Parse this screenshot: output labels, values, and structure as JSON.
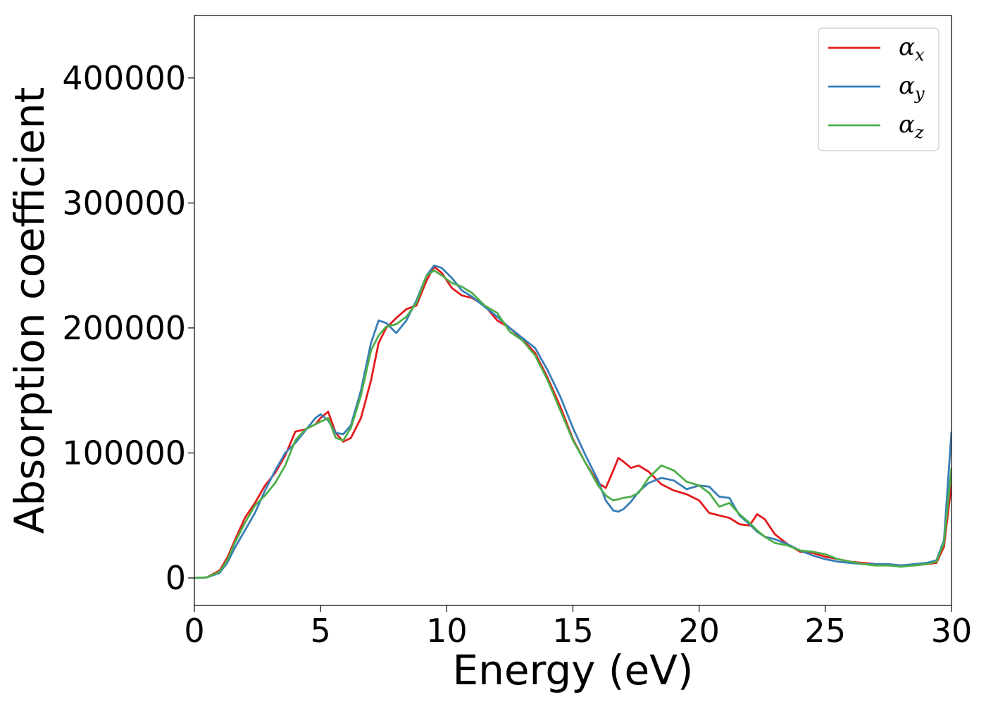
{
  "chart_data": {
    "type": "line",
    "xlabel": "Energy (eV)",
    "ylabel": "Absorption coefficient",
    "xlim": [
      0,
      30
    ],
    "ylim": [
      -22000,
      450000
    ],
    "xticks": [
      0,
      5,
      10,
      15,
      20,
      25,
      30
    ],
    "xtick_labels": [
      "0",
      "5",
      "10",
      "15",
      "20",
      "25",
      "30"
    ],
    "yticks": [
      0,
      100000,
      200000,
      300000,
      400000
    ],
    "ytick_labels": [
      "0",
      "100000",
      "200000",
      "300000",
      "400000"
    ],
    "grid": false,
    "legend_position": "top-right",
    "series": [
      {
        "name": "α",
        "subscript": "x",
        "color": "#e41a1c",
        "x": [
          0,
          0.5,
          1.0,
          1.3,
          1.6,
          2.0,
          2.4,
          2.8,
          3.2,
          3.6,
          4.0,
          4.4,
          4.8,
          5.0,
          5.3,
          5.6,
          5.9,
          6.2,
          6.6,
          7.0,
          7.3,
          7.6,
          8.0,
          8.4,
          8.8,
          9.2,
          9.5,
          9.8,
          10.2,
          10.6,
          11.0,
          11.5,
          12.0,
          12.5,
          13.0,
          13.5,
          14.0,
          14.5,
          15.0,
          15.5,
          16.0,
          16.3,
          16.6,
          16.8,
          17.0,
          17.3,
          17.6,
          18.0,
          18.5,
          19.0,
          19.5,
          20.0,
          20.4,
          20.8,
          21.2,
          21.6,
          22.0,
          22.3,
          22.6,
          23.0,
          23.5,
          24.0,
          24.5,
          25.0,
          25.5,
          26.0,
          26.5,
          27.0,
          27.5,
          28.0,
          28.5,
          29.0,
          29.4,
          29.7,
          30.0
        ],
        "y": [
          0,
          500,
          6000,
          16000,
          30000,
          48000,
          60000,
          74000,
          84000,
          98000,
          117000,
          119000,
          123000,
          128000,
          133000,
          116000,
          109000,
          112000,
          128000,
          158000,
          188000,
          200000,
          208000,
          215000,
          218000,
          238000,
          249000,
          244000,
          232000,
          226000,
          224000,
          218000,
          206000,
          200000,
          191000,
          180000,
          160000,
          137000,
          111000,
          92000,
          76000,
          72000,
          86000,
          96000,
          93000,
          88000,
          90000,
          85000,
          75000,
          70000,
          67000,
          62000,
          52000,
          50000,
          48000,
          43000,
          42000,
          51000,
          47000,
          35000,
          27000,
          21000,
          20000,
          17000,
          15000,
          13000,
          12000,
          11000,
          11000,
          10000,
          10000,
          11000,
          12000,
          25000,
          75000
        ]
      },
      {
        "name": "α",
        "subscript": "y",
        "color": "#377eb8",
        "x": [
          0,
          0.5,
          1.0,
          1.3,
          1.6,
          2.0,
          2.4,
          2.8,
          3.2,
          3.6,
          4.0,
          4.4,
          4.8,
          5.0,
          5.3,
          5.6,
          5.9,
          6.2,
          6.6,
          7.0,
          7.3,
          7.6,
          8.0,
          8.4,
          8.8,
          9.2,
          9.5,
          9.8,
          10.2,
          10.6,
          11.0,
          11.5,
          12.0,
          12.5,
          13.0,
          13.5,
          14.0,
          14.5,
          15.0,
          15.5,
          16.0,
          16.3,
          16.6,
          16.8,
          17.0,
          17.3,
          17.6,
          18.0,
          18.5,
          19.0,
          19.5,
          20.0,
          20.4,
          20.8,
          21.2,
          21.6,
          22.0,
          22.3,
          22.6,
          23.0,
          23.5,
          24.0,
          24.5,
          25.0,
          25.5,
          26.0,
          26.5,
          27.0,
          27.5,
          28.0,
          28.5,
          29.0,
          29.4,
          29.7,
          30.0
        ],
        "y": [
          0,
          400,
          4000,
          12000,
          24000,
          38000,
          52000,
          70000,
          86000,
          100000,
          108000,
          118000,
          128000,
          131000,
          126000,
          116000,
          115000,
          122000,
          150000,
          188000,
          206000,
          204000,
          196000,
          206000,
          222000,
          242000,
          250000,
          248000,
          240000,
          230000,
          225000,
          217000,
          209000,
          200000,
          192000,
          184000,
          166000,
          145000,
          120000,
          98000,
          78000,
          62000,
          54000,
          53000,
          55000,
          61000,
          69000,
          76000,
          80000,
          78000,
          71000,
          74000,
          73000,
          65000,
          64000,
          50000,
          43000,
          37000,
          33000,
          31000,
          27000,
          22000,
          18000,
          15000,
          13000,
          12000,
          11000,
          11000,
          11000,
          10000,
          11000,
          12000,
          14000,
          30000,
          117000
        ]
      },
      {
        "name": "α",
        "subscript": "z",
        "color": "#4daf4a",
        "x": [
          0,
          0.5,
          1.0,
          1.3,
          1.6,
          2.0,
          2.4,
          2.8,
          3.2,
          3.6,
          4.0,
          4.4,
          4.8,
          5.0,
          5.3,
          5.6,
          5.9,
          6.2,
          6.6,
          7.0,
          7.3,
          7.6,
          8.0,
          8.4,
          8.8,
          9.2,
          9.5,
          9.8,
          10.2,
          10.6,
          11.0,
          11.5,
          12.0,
          12.5,
          13.0,
          13.5,
          14.0,
          14.5,
          15.0,
          15.5,
          16.0,
          16.3,
          16.6,
          16.8,
          17.0,
          17.3,
          17.6,
          18.0,
          18.5,
          19.0,
          19.5,
          20.0,
          20.4,
          20.8,
          21.2,
          21.6,
          22.0,
          22.3,
          22.6,
          23.0,
          23.5,
          24.0,
          24.5,
          25.0,
          25.5,
          26.0,
          26.5,
          27.0,
          27.5,
          28.0,
          28.5,
          29.0,
          29.4,
          29.7,
          30.0
        ],
        "y": [
          0,
          450,
          5000,
          14000,
          28000,
          44000,
          58000,
          66000,
          76000,
          90000,
          110000,
          119000,
          123000,
          125000,
          128000,
          112000,
          110000,
          120000,
          146000,
          182000,
          194000,
          201000,
          203000,
          209000,
          220000,
          242000,
          246000,
          242000,
          236000,
          233000,
          228000,
          218000,
          212000,
          197000,
          190000,
          178000,
          158000,
          134000,
          110000,
          92000,
          74000,
          66000,
          62000,
          63000,
          64000,
          65000,
          68000,
          80000,
          90000,
          86000,
          77000,
          74000,
          68000,
          57000,
          60000,
          51000,
          44000,
          38000,
          33000,
          28000,
          26000,
          22000,
          21000,
          19000,
          15000,
          13000,
          11000,
          10000,
          10000,
          9000,
          10000,
          11000,
          13000,
          28000,
          88000
        ]
      }
    ]
  }
}
